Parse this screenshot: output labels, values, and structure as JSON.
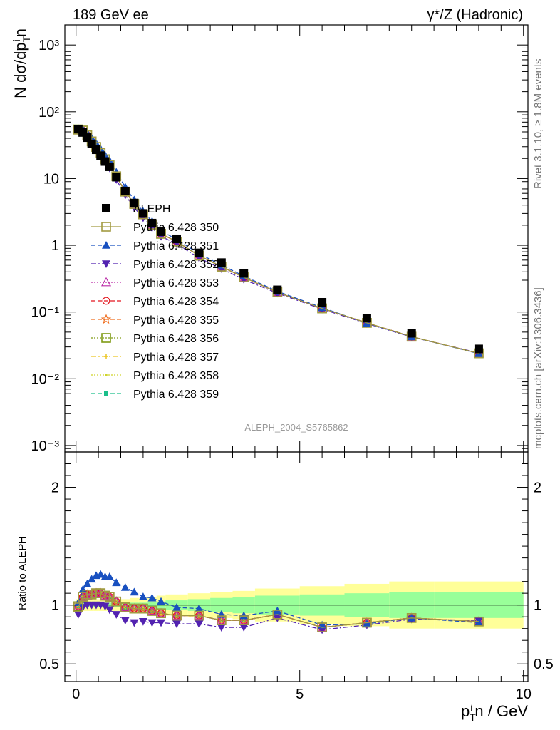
{
  "header": {
    "left_title": "189 GeV ee",
    "right_title": "γ*/Z (Hadronic)"
  },
  "side_labels": {
    "rivet": "Rivet 3.1.10, ≥ 1.8M events",
    "mcplots": "mcplots.cern.ch [arXiv:1306.3436]"
  },
  "watermark": "ALEPH_2004_S5765862",
  "chart_data": [
    {
      "type": "scatter",
      "panel": "main",
      "yscale": "log",
      "ylabel": "N dσ/dp_T^i n",
      "ylim": [
        0.0008,
        2000
      ],
      "xlim": [
        -0.25,
        10.1
      ],
      "y_tick_labels": [
        "10⁻³",
        "10⁻²",
        "10⁻¹",
        "1",
        "10",
        "10²",
        "10³"
      ],
      "legend_position": "left-middle",
      "x": [
        0.05,
        0.15,
        0.25,
        0.35,
        0.45,
        0.55,
        0.65,
        0.75,
        0.9,
        1.1,
        1.3,
        1.5,
        1.7,
        1.9,
        2.25,
        2.75,
        3.25,
        3.75,
        4.5,
        5.5,
        6.5,
        7.5,
        9.0
      ],
      "series": [
        {
          "name": "ALEPH",
          "color": "#000000",
          "marker": "filled-square",
          "line": "none",
          "values": [
            55,
            49,
            41,
            33,
            27,
            22,
            18,
            15,
            10.5,
            6.5,
            4.3,
            3.0,
            2.15,
            1.6,
            1.25,
            0.77,
            0.55,
            0.38,
            0.215,
            0.14,
            0.081,
            0.048,
            0.028
          ]
        },
        {
          "name": "Pythia 6.428 350",
          "color": "#a29a41",
          "marker": "open-square",
          "line": "solid",
          "ratio": [
            0.98,
            1.07,
            1.09,
            1.09,
            1.1,
            1.1,
            1.08,
            1.07,
            1.03,
            0.98,
            0.97,
            0.97,
            0.95,
            0.93,
            0.91,
            0.91,
            0.87,
            0.87,
            0.92,
            0.81,
            0.85,
            0.89,
            0.86
          ]
        },
        {
          "name": "Pythia 6.428 351",
          "color": "#1850c0",
          "marker": "filled-triangle-up",
          "line": "dashed",
          "ratio": [
            1.02,
            1.13,
            1.18,
            1.22,
            1.25,
            1.26,
            1.24,
            1.24,
            1.19,
            1.15,
            1.11,
            1.07,
            1.06,
            1.03,
            0.98,
            0.97,
            0.92,
            0.91,
            0.95,
            0.83,
            0.84,
            0.89,
            0.85
          ]
        },
        {
          "name": "Pythia 6.428 352",
          "color": "#5222b0",
          "marker": "filled-triangle-down",
          "line": "dash-dot",
          "ratio": [
            0.92,
            0.98,
            1.0,
            1.0,
            1.0,
            1.0,
            0.99,
            0.96,
            0.92,
            0.87,
            0.85,
            0.86,
            0.85,
            0.85,
            0.84,
            0.84,
            0.81,
            0.81,
            0.89,
            0.79,
            0.83,
            0.88,
            0.87
          ]
        },
        {
          "name": "Pythia 6.428 353",
          "color": "#bb2aa7",
          "marker": "open-triangle-up",
          "line": "dotted",
          "ratio": [
            0.99,
            1.07,
            1.08,
            1.09,
            1.1,
            1.1,
            1.08,
            1.07,
            1.03,
            0.98,
            0.97,
            0.97,
            0.95,
            0.93,
            0.91,
            0.91,
            0.87,
            0.87,
            0.92,
            0.81,
            0.85,
            0.89,
            0.86
          ]
        },
        {
          "name": "Pythia 6.428 354",
          "color": "#e3151d",
          "marker": "open-circle",
          "line": "dashed",
          "ratio": [
            0.99,
            1.07,
            1.09,
            1.09,
            1.1,
            1.1,
            1.08,
            1.07,
            1.03,
            0.98,
            0.97,
            0.97,
            0.95,
            0.93,
            0.91,
            0.91,
            0.87,
            0.87,
            0.92,
            0.81,
            0.85,
            0.89,
            0.86
          ]
        },
        {
          "name": "Pythia 6.428 355",
          "color": "#ef6f21",
          "marker": "open-star",
          "line": "dashed",
          "ratio": [
            0.99,
            1.07,
            1.09,
            1.09,
            1.1,
            1.1,
            1.08,
            1.07,
            1.03,
            0.98,
            0.97,
            0.97,
            0.95,
            0.93,
            0.91,
            0.91,
            0.87,
            0.87,
            0.92,
            0.81,
            0.85,
            0.89,
            0.86
          ]
        },
        {
          "name": "Pythia 6.428 356",
          "color": "#7f9a14",
          "marker": "open-square",
          "line": "dotted",
          "ratio": [
            0.99,
            1.07,
            1.09,
            1.09,
            1.1,
            1.1,
            1.08,
            1.07,
            1.03,
            0.98,
            0.97,
            0.97,
            0.95,
            0.93,
            0.91,
            0.91,
            0.87,
            0.87,
            0.92,
            0.81,
            0.85,
            0.89,
            0.86
          ]
        },
        {
          "name": "Pythia 6.428 357",
          "color": "#ecc523",
          "marker": "small-cross",
          "line": "dash-dot",
          "ratio": [
            0.99,
            1.07,
            1.09,
            1.09,
            1.1,
            1.1,
            1.08,
            1.07,
            1.03,
            0.98,
            0.97,
            0.97,
            0.95,
            0.93,
            0.91,
            0.91,
            0.87,
            0.87,
            0.92,
            0.81,
            0.85,
            0.89,
            0.86
          ]
        },
        {
          "name": "Pythia 6.428 358",
          "color": "#cfd42a",
          "marker": "small-dot",
          "line": "dotted",
          "ratio": [
            0.99,
            1.07,
            1.09,
            1.09,
            1.1,
            1.1,
            1.08,
            1.07,
            1.03,
            0.98,
            0.97,
            0.97,
            0.95,
            0.93,
            0.91,
            0.91,
            0.87,
            0.87,
            0.92,
            0.81,
            0.85,
            0.89,
            0.86
          ]
        },
        {
          "name": "Pythia 6.428 359",
          "color": "#1bbf8a",
          "marker": "filled-square-small",
          "line": "dashed",
          "ratio": [
            0.99,
            1.07,
            1.09,
            1.09,
            1.1,
            1.1,
            1.08,
            1.07,
            1.03,
            0.98,
            0.97,
            0.97,
            0.95,
            0.93,
            0.91,
            0.91,
            0.87,
            0.87,
            0.92,
            0.81,
            0.85,
            0.89,
            0.86
          ]
        }
      ]
    },
    {
      "type": "line",
      "panel": "ratio",
      "ylabel": "Ratio to ALEPH",
      "xlabel": "p_T^i n / GeV",
      "ylim": [
        0.35,
        2.3
      ],
      "xlim": [
        -0.25,
        10.1
      ],
      "y_tick_labels": [
        "0.5",
        "1",
        "2"
      ],
      "x_tick_labels": [
        "0",
        "5",
        "10"
      ],
      "band_edges": [
        0.0,
        0.1,
        0.2,
        0.3,
        0.4,
        0.5,
        0.6,
        0.7,
        0.8,
        1.0,
        1.2,
        1.4,
        1.6,
        1.8,
        2.0,
        2.5,
        3.0,
        3.5,
        4.0,
        5.0,
        6.0,
        7.0,
        8.0,
        10.0
      ],
      "band_inner": [
        0.02,
        0.02,
        0.02,
        0.02,
        0.02,
        0.02,
        0.02,
        0.02,
        0.02,
        0.02,
        0.02,
        0.02,
        0.03,
        0.03,
        0.04,
        0.05,
        0.06,
        0.07,
        0.08,
        0.09,
        0.1,
        0.11,
        0.11
      ],
      "band_outer": [
        0.05,
        0.05,
        0.05,
        0.05,
        0.05,
        0.05,
        0.05,
        0.05,
        0.05,
        0.05,
        0.06,
        0.06,
        0.07,
        0.08,
        0.09,
        0.1,
        0.11,
        0.12,
        0.14,
        0.16,
        0.18,
        0.2,
        0.2
      ],
      "band_colors": {
        "inner": "#99ff99",
        "outer": "#ffff99"
      }
    }
  ]
}
